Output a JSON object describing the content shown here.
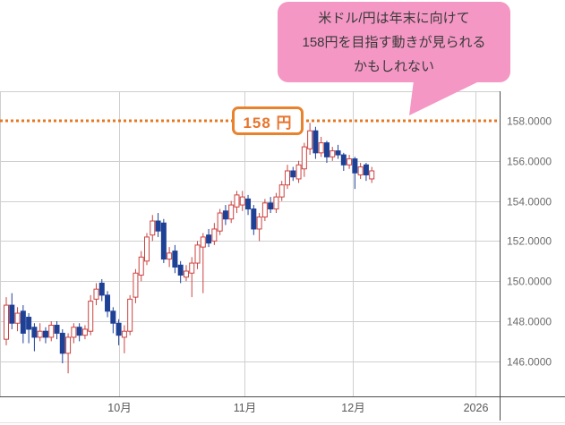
{
  "annotation": {
    "lines": [
      "米ドル/円は年末に向けて",
      "158円を目指す動きが見られる",
      "かもしれない"
    ]
  },
  "target_line": {
    "label": "158 円",
    "price": 158,
    "color": "#e87722"
  },
  "chart_data": {
    "type": "candlestick",
    "instrument": "米ドル/円",
    "y_axis": {
      "side": "right",
      "ticks": [
        {
          "label": "158.0000",
          "value": 158
        },
        {
          "label": "156.0000",
          "value": 156
        },
        {
          "label": "154.0000",
          "value": 154
        },
        {
          "label": "152.0000",
          "value": 152
        },
        {
          "label": "150.0000",
          "value": 150
        },
        {
          "label": "148.0000",
          "value": 148
        },
        {
          "label": "146.0000",
          "value": 146
        }
      ]
    },
    "x_axis": {
      "ticks": [
        {
          "label": "10月",
          "index": 20
        },
        {
          "label": "11月",
          "index": 42.3
        },
        {
          "label": "12月",
          "index": 61.6
        },
        {
          "label": "2026",
          "index": 83.4
        }
      ]
    },
    "grid": true,
    "colors": {
      "bull_stroke": "#cb4341",
      "bull_fill": "#ffffff",
      "bear_fill": "#1e4196",
      "gridline": "#cfcfcf",
      "axis": "#4d4d4d",
      "tick_text": "#6b6b6b"
    },
    "candles_ohlc": [
      [
        147.1,
        149.2,
        146.8,
        148.8
      ],
      [
        148.8,
        149.4,
        147.6,
        147.9
      ],
      [
        147.9,
        148.7,
        147.5,
        148.4
      ],
      [
        148.5,
        148.8,
        146.9,
        147.4
      ],
      [
        148.2,
        148.4,
        146.9,
        147.6
      ],
      [
        147.7,
        147.9,
        146.5,
        147.2
      ],
      [
        147.2,
        147.9,
        147.0,
        147.5
      ],
      [
        147.5,
        147.7,
        146.9,
        147.2
      ],
      [
        147.2,
        148.0,
        147.0,
        147.8
      ],
      [
        147.8,
        148.0,
        147.1,
        147.4
      ],
      [
        147.4,
        147.6,
        145.9,
        146.4
      ],
      [
        146.4,
        147.4,
        145.4,
        147.2
      ],
      [
        147.2,
        147.9,
        146.9,
        147.7
      ],
      [
        147.7,
        147.9,
        147.0,
        147.3
      ],
      [
        147.3,
        147.8,
        147.1,
        147.6
      ],
      [
        147.5,
        149.3,
        147.3,
        149.0
      ],
      [
        149.1,
        149.9,
        148.8,
        149.6
      ],
      [
        149.9,
        150.1,
        149.0,
        149.3
      ],
      [
        149.3,
        149.5,
        148.2,
        148.5
      ],
      [
        148.5,
        148.7,
        147.4,
        147.9
      ],
      [
        147.9,
        148.1,
        146.8,
        147.3
      ],
      [
        147.2,
        147.8,
        146.4,
        147.5
      ],
      [
        147.5,
        149.3,
        147.3,
        149.1
      ],
      [
        149.2,
        150.6,
        148.9,
        150.4
      ],
      [
        150.3,
        151.5,
        150.0,
        151.2
      ],
      [
        151.0,
        152.4,
        150.8,
        152.2
      ],
      [
        152.3,
        153.3,
        152.0,
        153.0
      ],
      [
        153.0,
        153.4,
        152.2,
        152.5
      ],
      [
        152.9,
        153.1,
        150.9,
        151.1
      ],
      [
        151.1,
        151.7,
        150.7,
        151.4
      ],
      [
        151.5,
        151.8,
        150.4,
        150.7
      ],
      [
        150.8,
        151.0,
        149.9,
        150.3
      ],
      [
        150.2,
        150.8,
        150.0,
        150.5
      ],
      [
        150.4,
        151.2,
        149.2,
        150.9
      ],
      [
        150.9,
        152.0,
        150.6,
        151.8
      ],
      [
        151.7,
        152.4,
        149.4,
        152.2
      ],
      [
        152.3,
        152.6,
        151.7,
        151.9
      ],
      [
        152.0,
        152.9,
        151.8,
        152.6
      ],
      [
        152.5,
        153.6,
        152.3,
        153.4
      ],
      [
        153.5,
        153.8,
        152.8,
        153.1
      ],
      [
        153.1,
        154.0,
        152.9,
        153.8
      ],
      [
        153.7,
        154.5,
        153.4,
        154.3
      ],
      [
        153.8,
        154.5,
        153.5,
        154.2
      ],
      [
        154.1,
        154.3,
        153.3,
        153.6
      ],
      [
        153.6,
        153.8,
        152.3,
        152.6
      ],
      [
        152.6,
        153.4,
        152.0,
        153.2
      ],
      [
        153.2,
        154.1,
        153.0,
        153.9
      ],
      [
        153.9,
        154.2,
        153.4,
        153.6
      ],
      [
        153.6,
        154.4,
        153.4,
        154.2
      ],
      [
        154.2,
        155.0,
        154.0,
        154.8
      ],
      [
        154.8,
        155.8,
        154.6,
        155.5
      ],
      [
        155.5,
        155.7,
        155.0,
        155.2
      ],
      [
        155.1,
        156.0,
        154.9,
        155.8
      ],
      [
        155.6,
        156.9,
        155.2,
        156.7
      ],
      [
        156.6,
        157.9,
        156.3,
        157.5
      ],
      [
        157.5,
        157.7,
        156.1,
        156.4
      ],
      [
        156.4,
        157.2,
        156.2,
        156.9
      ],
      [
        156.9,
        157.0,
        155.9,
        156.2
      ],
      [
        156.2,
        156.7,
        156.0,
        156.5
      ],
      [
        156.5,
        156.8,
        156.1,
        156.3
      ],
      [
        156.3,
        156.4,
        155.5,
        155.8
      ],
      [
        155.8,
        156.3,
        155.6,
        156.1
      ],
      [
        156.1,
        156.2,
        154.6,
        155.4
      ],
      [
        155.3,
        155.9,
        155.1,
        155.7
      ],
      [
        155.8,
        155.9,
        155.0,
        155.3
      ],
      [
        155.1,
        155.7,
        154.9,
        155.5
      ]
    ]
  }
}
